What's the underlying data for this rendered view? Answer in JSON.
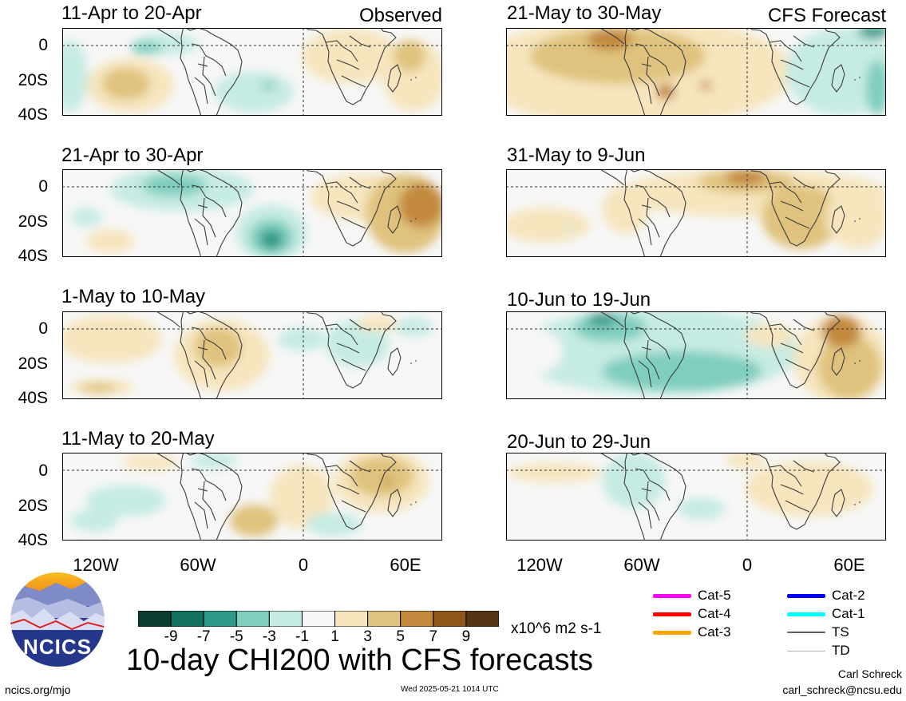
{
  "left_header": "Observed",
  "right_header": "CFS Forecast",
  "panels": [
    {
      "title": "11-Apr to 20-Apr"
    },
    {
      "title": "21-Apr to 30-Apr"
    },
    {
      "title": "1-May to 10-May"
    },
    {
      "title": "11-May to 20-May"
    },
    {
      "title": "21-May to 30-May"
    },
    {
      "title": "31-May to 9-Jun"
    },
    {
      "title": "10-Jun to 19-Jun"
    },
    {
      "title": "20-Jun to 29-Jun"
    }
  ],
  "y_ticks": [
    "0",
    "20S",
    "40S"
  ],
  "x_ticks": [
    "120W",
    "60W",
    "0",
    "60E"
  ],
  "colorbar": {
    "colors": [
      "#0c3b31",
      "#14705f",
      "#2e9a88",
      "#7fcebe",
      "#c6ebe3",
      "#f7f7f7",
      "#f6e5bd",
      "#dfc27d",
      "#c3893c",
      "#8f5618",
      "#553513"
    ],
    "ticks": [
      "-9",
      "-7",
      "-5",
      "-3",
      "-1",
      "1",
      "3",
      "5",
      "7",
      "9"
    ],
    "units": "x10^6 m2 s-1"
  },
  "track_legend": [
    {
      "label": "Cat-5",
      "color": "#ff00ff"
    },
    {
      "label": "Cat-4",
      "color": "#ff0000"
    },
    {
      "label": "Cat-3",
      "color": "#ffa500"
    },
    {
      "label": "Cat-2",
      "color": "#0000ff"
    },
    {
      "label": "Cat-1",
      "color": "#00ffff"
    },
    {
      "label": "TS",
      "color": "#606060"
    },
    {
      "label": "TD",
      "color": "#b0b0b0"
    }
  ],
  "main_title": "10-day CHI200 with CFS forecasts",
  "logo_text": "NCICS",
  "footer_left": "ncics.org/mjo",
  "footer_center": "Wed 2025-05-21 1014 UTC",
  "author_name": "Carl Schreck",
  "author_email": "carl_schreck@ncsu.edu"
}
